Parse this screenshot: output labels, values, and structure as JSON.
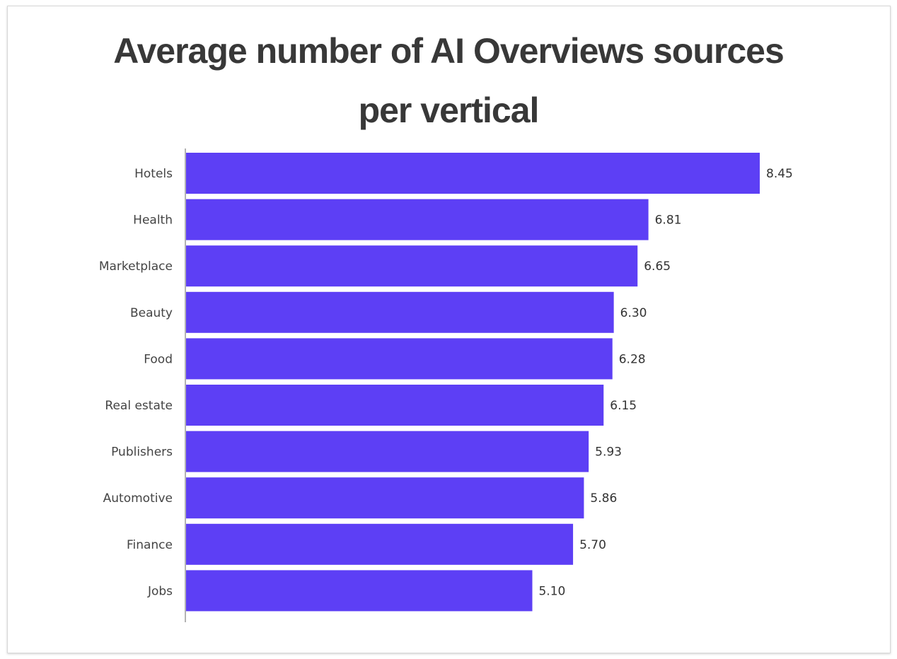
{
  "chart_data": {
    "type": "bar",
    "orientation": "horizontal",
    "title_line1": "Average number of AI Overviews sources",
    "title_line2": "per vertical",
    "categories": [
      "Hotels",
      "Health",
      "Marketplace",
      "Beauty",
      "Food",
      "Real estate",
      "Publishers",
      "Automotive",
      "Finance",
      "Jobs"
    ],
    "values": [
      8.45,
      6.81,
      6.65,
      6.3,
      6.28,
      6.15,
      5.93,
      5.86,
      5.7,
      5.1
    ],
    "value_labels": [
      "8.45",
      "6.81",
      "6.65",
      "6.30",
      "6.28",
      "6.15",
      "5.93",
      "5.86",
      "5.70",
      "5.10"
    ],
    "xlim": [
      0,
      8.45
    ],
    "bar_color": "#5d3ff5",
    "axis_color": "#9a9a9a",
    "grid": false,
    "legend": "none"
  }
}
